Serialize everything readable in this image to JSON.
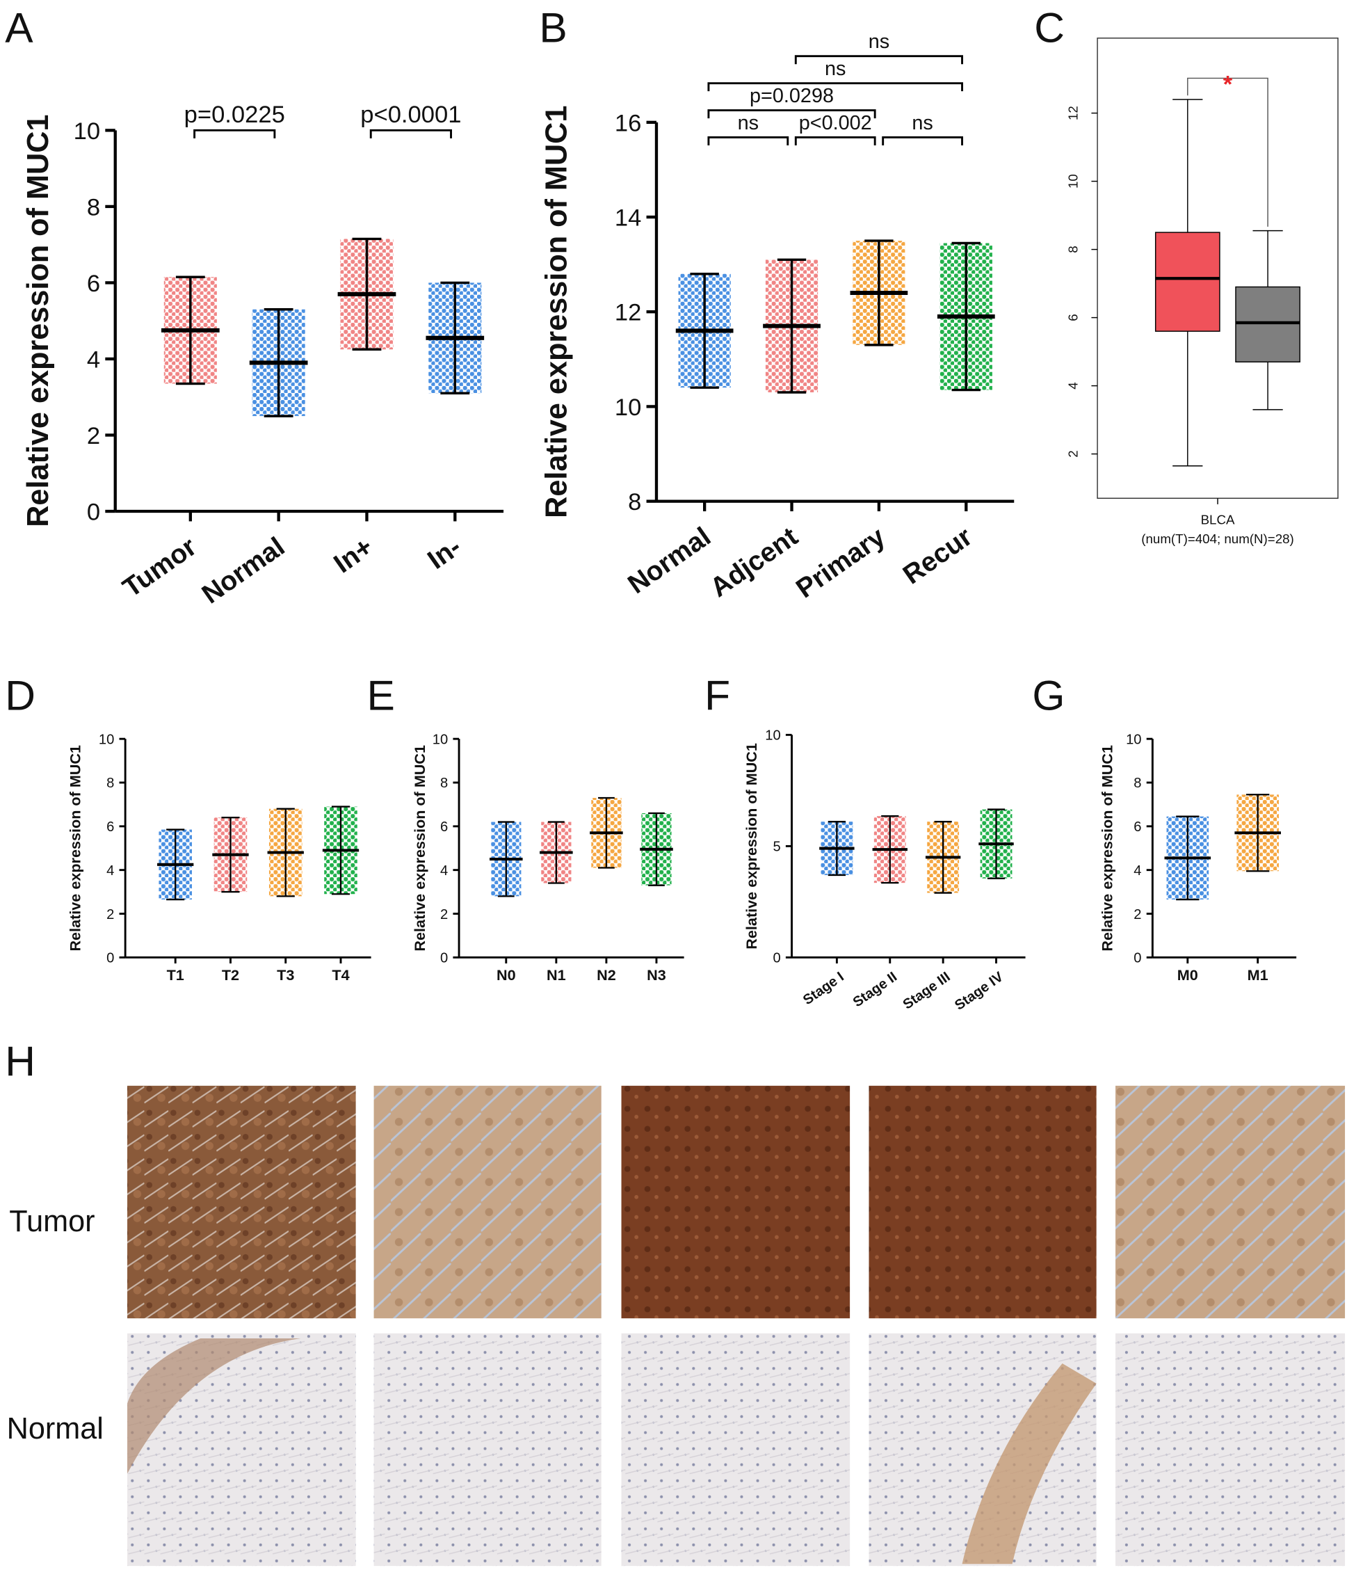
{
  "chart_data": [
    {
      "panel": "A",
      "type": "dot",
      "ylabel": "Relative expression of MUC1",
      "categories": [
        "Tumor",
        "Normal",
        "In+",
        "In-"
      ],
      "values": [
        4.75,
        3.9,
        5.7,
        4.55
      ],
      "errors": [
        1.4,
        1.4,
        1.45,
        1.45
      ],
      "colors": [
        "#f08585",
        "#4a90e2",
        "#f08585",
        "#4a90e2"
      ],
      "ylim": [
        0,
        10
      ],
      "yticks": [
        0,
        2,
        4,
        6,
        8,
        10
      ],
      "comparisons": [
        {
          "from": 0,
          "to": 1,
          "label": "p=0.0225"
        },
        {
          "from": 2,
          "to": 3,
          "label": "p<0.0001"
        }
      ]
    },
    {
      "panel": "B",
      "type": "dot",
      "ylabel": "Relative expression of MUC1",
      "categories": [
        "Normal",
        "Adjcent",
        "Primary",
        "Recur"
      ],
      "values": [
        11.6,
        11.7,
        12.4,
        11.9
      ],
      "errors": [
        1.2,
        1.4,
        1.1,
        1.55
      ],
      "colors": [
        "#4a90e2",
        "#f08585",
        "#f5a742",
        "#22b14c"
      ],
      "ylim": [
        8,
        16
      ],
      "yticks": [
        8,
        10,
        12,
        14,
        16
      ],
      "comparisons": [
        {
          "from": 0,
          "to": 1,
          "label": "ns"
        },
        {
          "from": 1,
          "to": 2,
          "label": "p<0.002"
        },
        {
          "from": 2,
          "to": 3,
          "label": "ns"
        },
        {
          "from": 0,
          "to": 2,
          "label": "p=0.0298"
        },
        {
          "from": 0,
          "to": 3,
          "label": "ns"
        },
        {
          "from": 1,
          "to": 3,
          "label": "ns"
        }
      ]
    },
    {
      "panel": "C",
      "type": "box",
      "xlabel": "BLCA",
      "xlabel_note": "(num(T)=404; num(N)=28)",
      "q1": [
        5.6,
        4.7
      ],
      "median": [
        7.15,
        5.85
      ],
      "q3": [
        8.5,
        6.9
      ],
      "whisker_low": [
        1.65,
        3.3
      ],
      "whisker_high": [
        12.4,
        8.55
      ],
      "colors": [
        "#f0525a",
        "#7f7f7f"
      ],
      "ylim": [
        0.7,
        14.2
      ],
      "yticks": [
        2,
        4,
        6,
        8,
        10,
        12
      ],
      "comparisons": [
        {
          "from": 0,
          "to": 1,
          "label": "*",
          "color": "#e8262a"
        }
      ]
    },
    {
      "panel": "D",
      "type": "dot",
      "ylabel": "Relative expression of MUC1",
      "categories": [
        "T1",
        "T2",
        "T3",
        "T4"
      ],
      "values": [
        4.25,
        4.7,
        4.8,
        4.9
      ],
      "errors": [
        1.6,
        1.7,
        2.0,
        2.0
      ],
      "colors": [
        "#4a90e2",
        "#f08585",
        "#f5a742",
        "#22b14c"
      ],
      "ylim": [
        0,
        10
      ],
      "yticks": [
        0,
        2,
        4,
        6,
        8,
        10
      ]
    },
    {
      "panel": "E",
      "type": "dot",
      "ylabel": "Relative expression of MUC1",
      "categories": [
        "N0",
        "N1",
        "N2",
        "N3"
      ],
      "values": [
        4.5,
        4.8,
        5.7,
        4.95
      ],
      "errors": [
        1.7,
        1.4,
        1.6,
        1.65
      ],
      "colors": [
        "#4a90e2",
        "#f08585",
        "#f5a742",
        "#22b14c"
      ],
      "ylim": [
        0,
        10
      ],
      "yticks": [
        0,
        2,
        4,
        6,
        8,
        10
      ]
    },
    {
      "panel": "F",
      "type": "dot",
      "ylabel": "Relative expression of MUC1",
      "categories": [
        "Stage I",
        "Stage II",
        "Stage III",
        "Stage IV"
      ],
      "values": [
        4.9,
        4.85,
        4.5,
        5.1
      ],
      "errors": [
        1.2,
        1.5,
        1.6,
        1.55
      ],
      "colors": [
        "#4a90e2",
        "#f08585",
        "#f5a742",
        "#22b14c"
      ],
      "ylim": [
        0,
        10
      ],
      "yticks": [
        0,
        5,
        10
      ]
    },
    {
      "panel": "G",
      "type": "dot",
      "ylabel": "Relative expression of MUC1",
      "categories": [
        "M0",
        "M1"
      ],
      "values": [
        4.55,
        5.7
      ],
      "errors": [
        1.9,
        1.75
      ],
      "colors": [
        "#4a90e2",
        "#f5a742"
      ],
      "ylim": [
        0,
        10
      ],
      "yticks": [
        0,
        2,
        4,
        6,
        8,
        10
      ]
    }
  ],
  "figure_h": {
    "panel": "H",
    "rows": [
      "Tumor",
      "Normal"
    ]
  }
}
